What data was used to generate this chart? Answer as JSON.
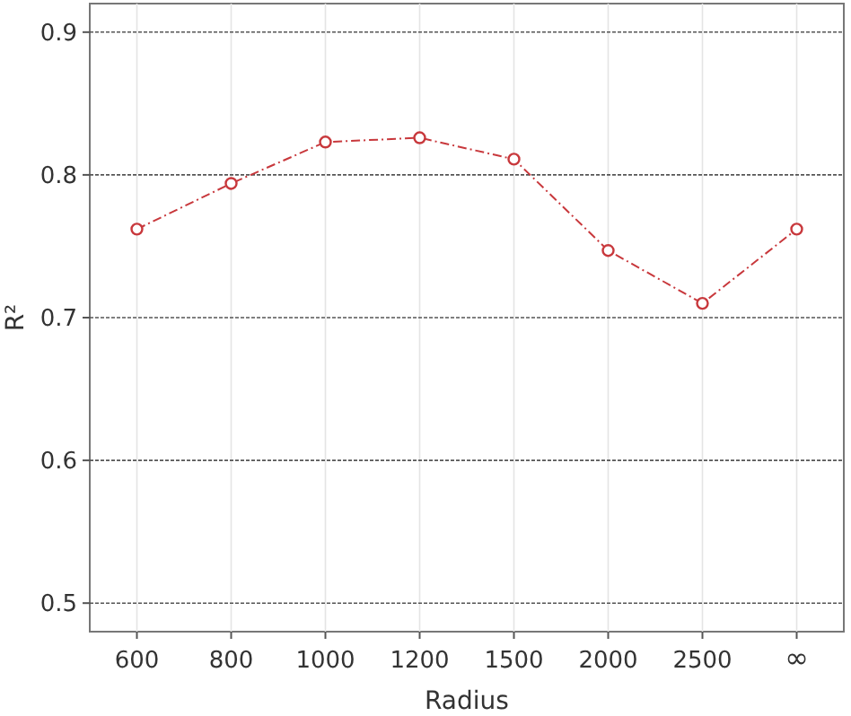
{
  "chart_data": {
    "type": "line",
    "xlabel": "Radius",
    "ylabel": "R²",
    "categories": [
      "600",
      "800",
      "1000",
      "1200",
      "1500",
      "2000",
      "2500",
      "∞"
    ],
    "series": [
      {
        "color": "#c8383c",
        "values": [
          0.762,
          0.794,
          0.823,
          0.826,
          0.811,
          0.747,
          0.71,
          0.762
        ]
      }
    ],
    "ylim": [
      0.48,
      0.92
    ],
    "yticks": [
      0.5,
      0.6,
      0.7,
      0.8,
      0.9
    ],
    "grid": true,
    "marker": "circle",
    "line_style": "dashed"
  }
}
